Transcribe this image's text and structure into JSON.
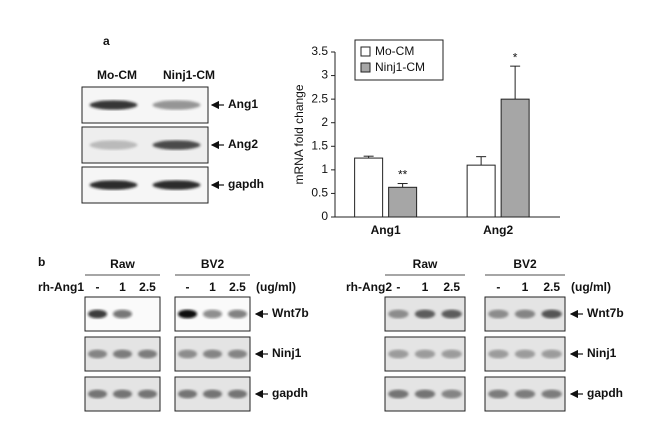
{
  "panel_a": {
    "label": "a",
    "blot_columns": [
      "Mo-CM",
      "Ninj1-CM"
    ],
    "blot_rows": [
      "Ang1",
      "Ang2",
      "gapdh"
    ]
  },
  "chart_data": {
    "type": "bar",
    "ylabel": "mRNA fold change",
    "categories": [
      "Ang1",
      "Ang2"
    ],
    "series": [
      {
        "name": "Mo-CM",
        "color": "#ffffff",
        "values": [
          1.25,
          1.1
        ],
        "errors": [
          0.04,
          0.18
        ],
        "significance": [
          null,
          null
        ]
      },
      {
        "name": "Ninj1-CM",
        "color": "#a6a6a6",
        "values": [
          0.63,
          2.5
        ],
        "errors": [
          0.08,
          0.7
        ],
        "significance": [
          "**",
          "*"
        ]
      }
    ],
    "ylim": [
      0,
      3.5
    ],
    "yticks": [
      0,
      0.5,
      1,
      1.5,
      2,
      2.5,
      3,
      3.5
    ],
    "legend": "upper left",
    "grid": false
  },
  "panel_b": {
    "label": "b",
    "unit": "(ug/ml)",
    "groups": [
      "Raw",
      "BV2"
    ],
    "doses": [
      "-",
      "1",
      "2.5"
    ],
    "rows": [
      "Wnt7b",
      "Ninj1",
      "gapdh"
    ],
    "treatments": [
      "rh-Ang1",
      "rh-Ang2"
    ]
  }
}
